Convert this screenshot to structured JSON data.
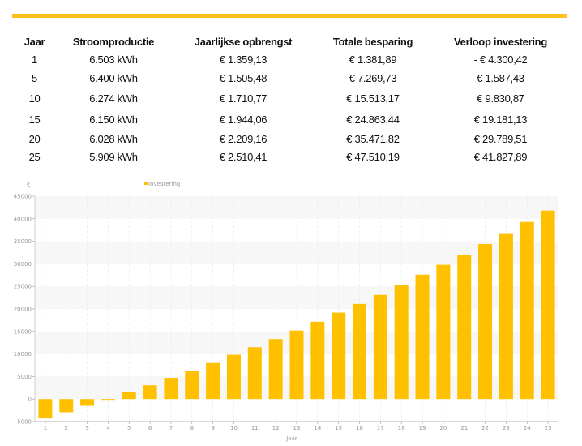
{
  "table": {
    "headers": [
      "Jaar",
      "Stroomproductie",
      "Jaarlijkse opbrengst",
      "Totale besparing",
      "Verloop investering"
    ],
    "rows": [
      [
        "1",
        "6.503 kWh",
        "€ 1.359,13",
        "€ 1.381,89",
        "- € 4.300,42"
      ],
      [
        "5",
        "6.400 kWh",
        "€ 1.505,48",
        "€ 7.269,73",
        "€ 1.587,43"
      ],
      [
        "10",
        "6.274 kWh",
        "€ 1.710,77",
        "€ 15.513,17",
        "€ 9.830,87"
      ],
      [
        "15",
        "6.150 kWh",
        "€ 1.944,06",
        "€ 24.863,44",
        "€ 19.181,13"
      ],
      [
        "20",
        "6.028 kWh",
        "€ 2.209,16",
        "€ 35.471,82",
        "€ 29.789,51"
      ],
      [
        "25",
        "5.909 kWh",
        "€ 2.510,41",
        "€ 47.510,19",
        "€ 41.827,89"
      ]
    ]
  },
  "colors": {
    "accent": "#FFBF1F",
    "bar": "#FFC000",
    "band": "#F7F7F7"
  },
  "chart_data": {
    "type": "bar",
    "xlabel": "Jaar",
    "ylabel": "€",
    "legend": {
      "entries": [
        "Investering"
      ],
      "placement": "top-center"
    },
    "categories": [
      "1",
      "2",
      "3",
      "4",
      "5",
      "6",
      "7",
      "8",
      "9",
      "10",
      "11",
      "12",
      "13",
      "14",
      "15",
      "16",
      "17",
      "18",
      "19",
      "20",
      "21",
      "22",
      "23",
      "24",
      "25"
    ],
    "series": [
      {
        "name": "Investering",
        "values": [
          -4300,
          -2930,
          -1500,
          -50,
          1587,
          3060,
          4700,
          6300,
          8000,
          9831,
          11500,
          13300,
          15200,
          17150,
          19181,
          21100,
          23100,
          25300,
          27600,
          29790,
          32000,
          34400,
          36800,
          39300,
          41828
        ]
      }
    ],
    "ylim": [
      -5000,
      45000
    ],
    "yticks": [
      "-5000",
      "0",
      "5000",
      "10000",
      "15000",
      "20000",
      "25000",
      "30000",
      "35000",
      "40000",
      "45000"
    ],
    "grid": true
  }
}
